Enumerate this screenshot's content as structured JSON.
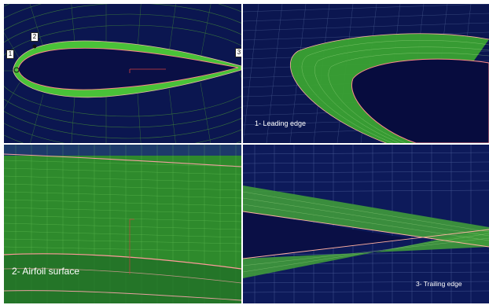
{
  "panels": [
    {
      "id": "overview",
      "markers": [
        "1",
        "2",
        "3"
      ]
    },
    {
      "id": "leading-edge",
      "caption": "1- Leading edge"
    },
    {
      "id": "airfoil-surface",
      "caption": "2- Airfoil surface"
    },
    {
      "id": "trailing-edge",
      "caption": "3- Trailing edge"
    }
  ],
  "colors": {
    "background": "#0b1650",
    "mesh": "#2f9a2f",
    "mesh_bright": "#4ccc3c",
    "boundary": "#e87a7a",
    "grid": "#6f86b8"
  }
}
